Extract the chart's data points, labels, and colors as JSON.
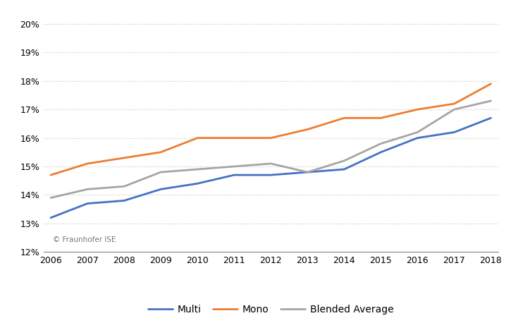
{
  "years": [
    2006,
    2007,
    2008,
    2009,
    2010,
    2011,
    2012,
    2013,
    2014,
    2015,
    2016,
    2017,
    2018
  ],
  "multi": [
    0.132,
    0.137,
    0.138,
    0.142,
    0.144,
    0.147,
    0.147,
    0.148,
    0.149,
    0.155,
    0.16,
    0.162,
    0.167
  ],
  "mono": [
    0.147,
    0.151,
    0.153,
    0.155,
    0.16,
    0.16,
    0.16,
    0.163,
    0.167,
    0.167,
    0.17,
    0.172,
    0.179
  ],
  "blended": [
    0.139,
    0.142,
    0.143,
    0.148,
    0.149,
    0.15,
    0.151,
    0.148,
    0.152,
    0.158,
    0.162,
    0.17,
    0.173
  ],
  "multi_color": "#4472C4",
  "mono_color": "#ED7D31",
  "blended_color": "#A5A5A5",
  "ylim": [
    0.12,
    0.205
  ],
  "yticks": [
    0.12,
    0.13,
    0.14,
    0.15,
    0.16,
    0.17,
    0.18,
    0.19,
    0.2
  ],
  "annotation": "© Fraunhofer ISE",
  "legend_labels": [
    "Multi",
    "Mono",
    "Blended Average"
  ],
  "background_color": "#ffffff",
  "grid_color": "#c8c8c8"
}
